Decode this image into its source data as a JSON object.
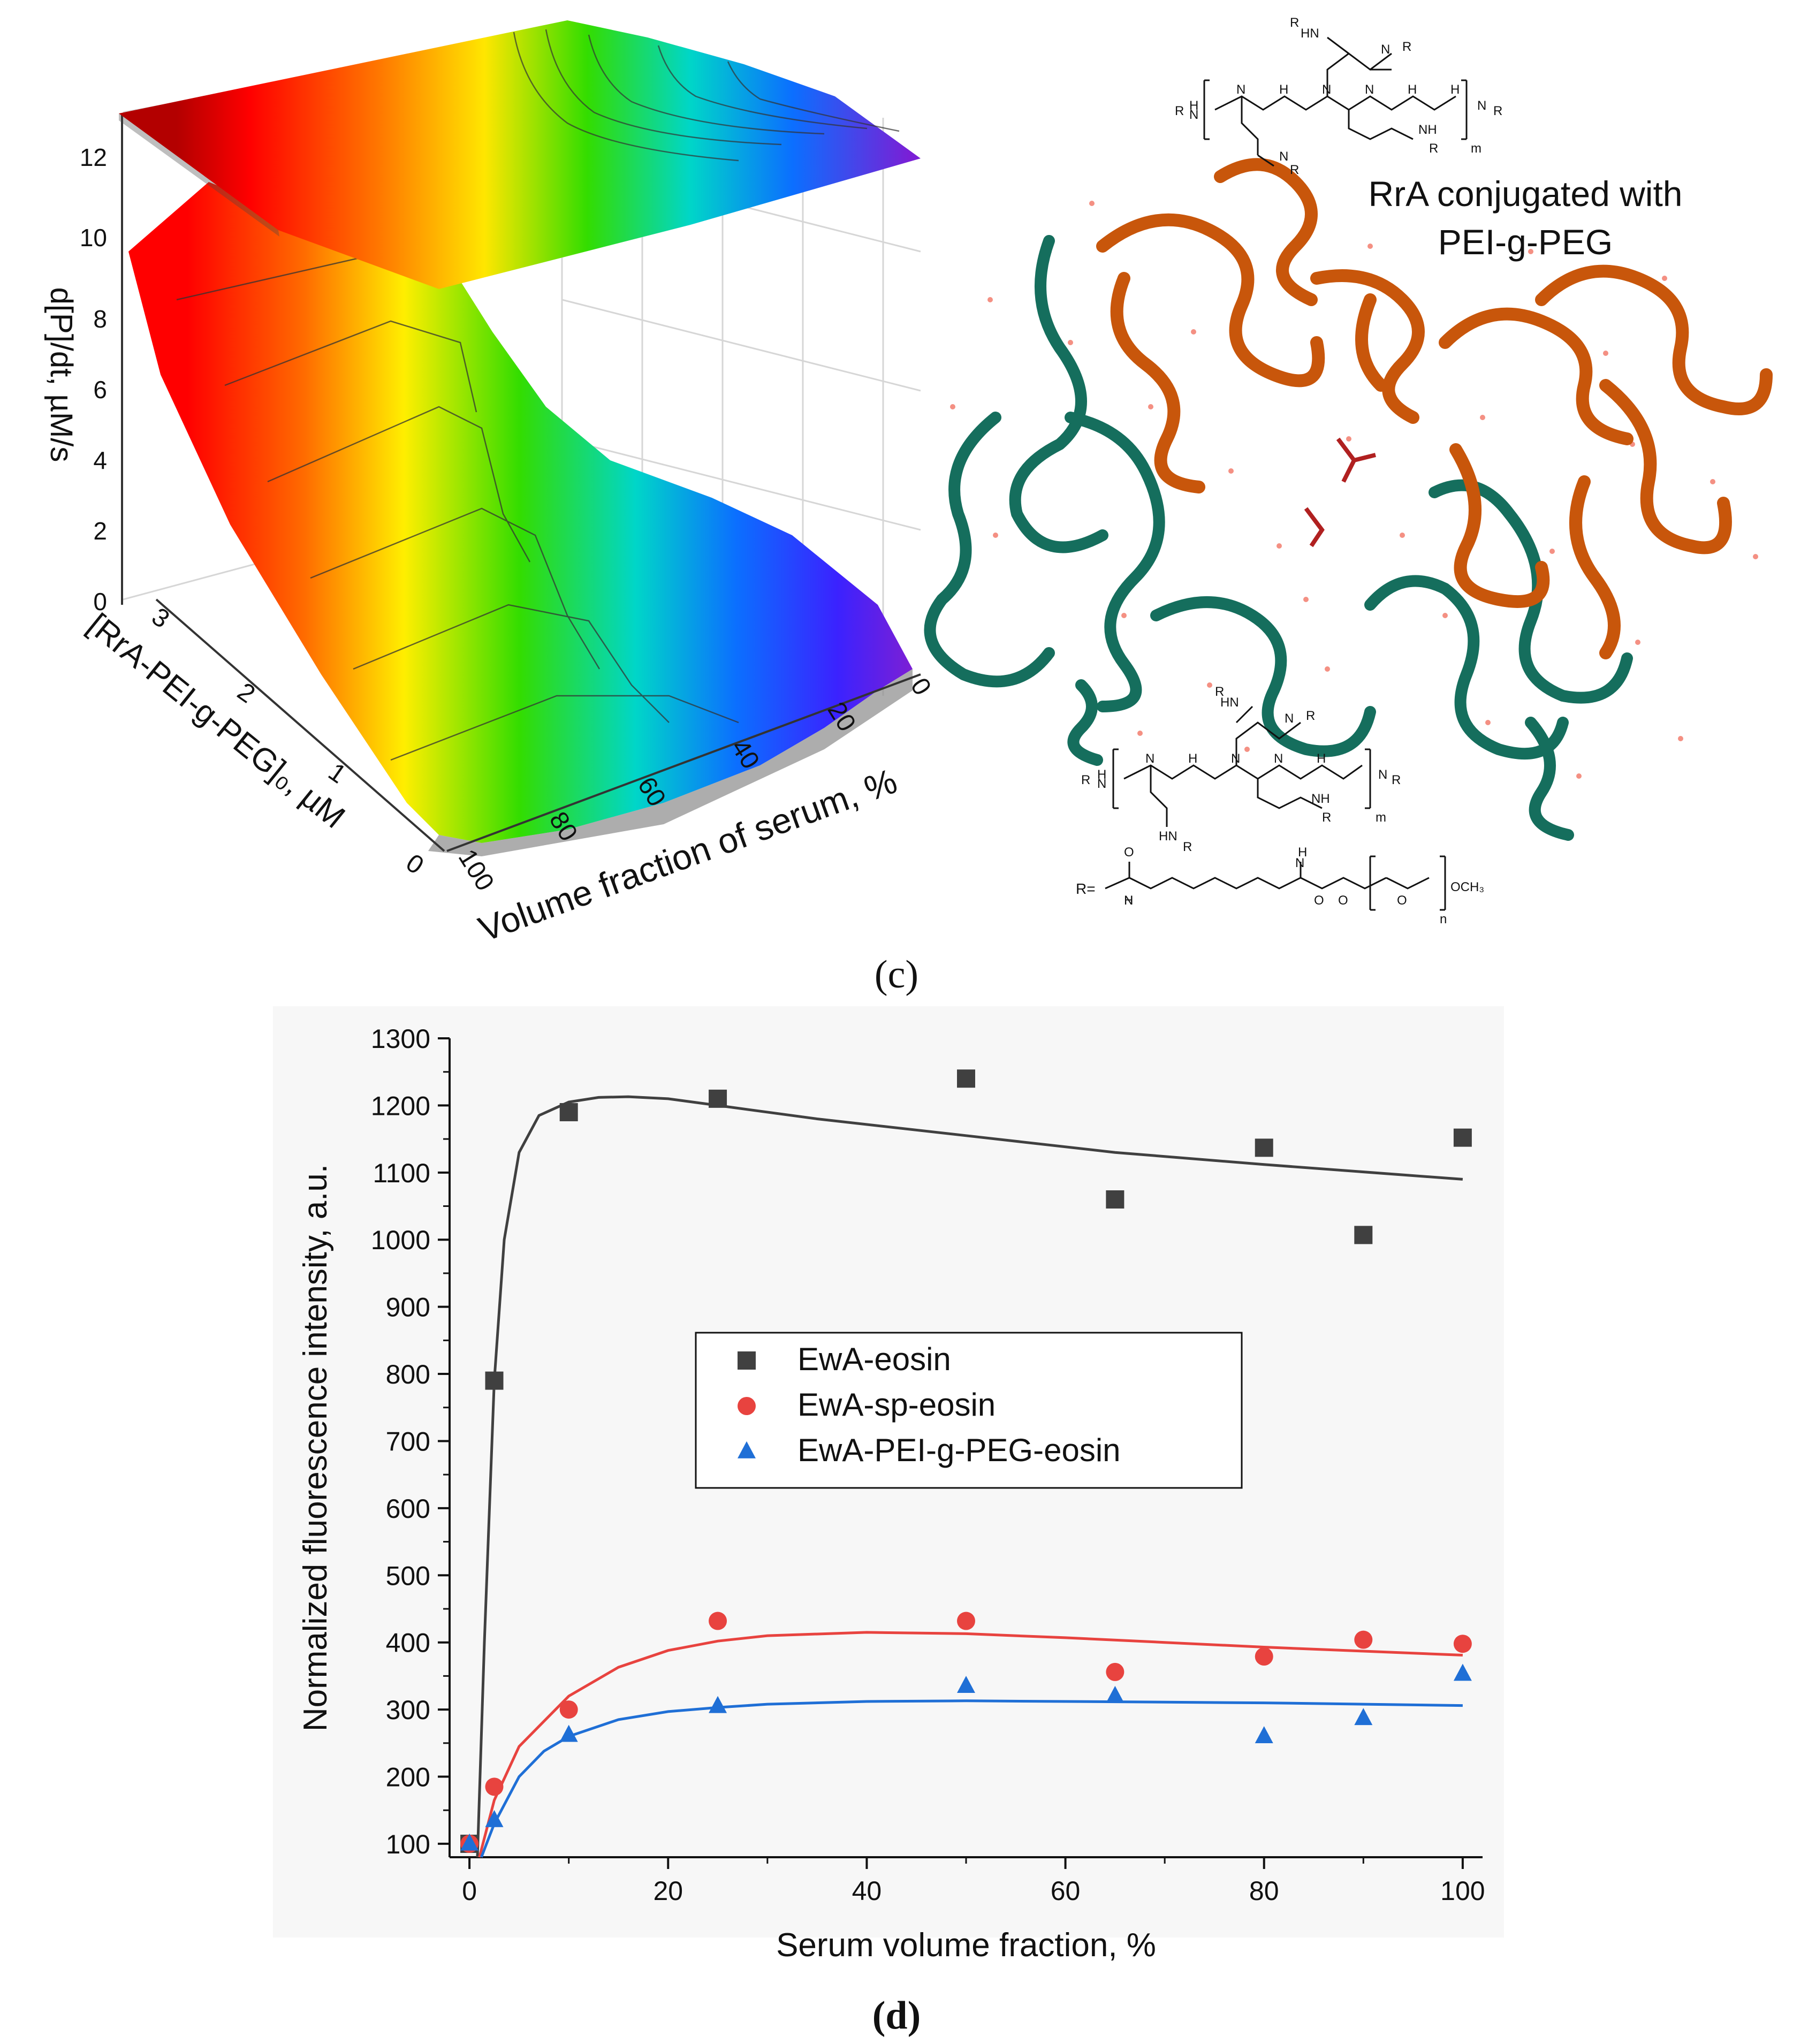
{
  "panel_c": {
    "label": "(c)",
    "surface_title": "RrA conjugated with",
    "surface_title2": "PEI-g-PEG",
    "z_axis_label": "d[P]/dt, µM/s",
    "z_ticks": [
      "0",
      "2",
      "4",
      "6",
      "8",
      "10",
      "12"
    ],
    "conc_axis_label": "[RrA-PEI-g-PEG]₀, µM",
    "conc_ticks": [
      "0",
      "1",
      "2",
      "3"
    ],
    "serum_axis_label": "Volume fraction of serum, %",
    "serum_ticks": [
      "0",
      "20",
      "40",
      "60",
      "80",
      "100"
    ],
    "structure_labels": {
      "r_group": "R=",
      "och3": "OCH₃",
      "m": "m",
      "n": "n"
    }
  },
  "panel_d": {
    "label": "(d)"
  },
  "chart_data": {
    "type": "scatter",
    "xlabel": "Serum volume fraction, %",
    "ylabel": "Normalized fluorescence intensity, a.u.",
    "xlim": [
      -2,
      102
    ],
    "ylim": [
      80,
      1300
    ],
    "x_ticks": [
      0,
      20,
      40,
      60,
      80,
      100
    ],
    "y_ticks": [
      100,
      200,
      300,
      400,
      500,
      600,
      700,
      800,
      900,
      1000,
      1100,
      1200,
      1300
    ],
    "legend_position": "center",
    "series": [
      {
        "name": "EwA-eosin",
        "color": "#404040",
        "marker": "square",
        "x": [
          0,
          2.5,
          10,
          25,
          50,
          65,
          80,
          90,
          100
        ],
        "y": [
          100,
          790,
          1190,
          1210,
          1240,
          1060,
          1137,
          1007,
          1152
        ],
        "fit": {
          "x": [
            0.8,
            1.5,
            2.5,
            3.5,
            5,
            7,
            10,
            13,
            16,
            20,
            25,
            35,
            50,
            65,
            80,
            100
          ],
          "y": [
            80,
            400,
            790,
            1000,
            1130,
            1185,
            1205,
            1212,
            1213,
            1210,
            1200,
            1180,
            1155,
            1130,
            1112,
            1090
          ]
        }
      },
      {
        "name": "EwA-sp-eosin",
        "color": "#e8433f",
        "marker": "circle",
        "x": [
          0,
          2.5,
          10,
          25,
          50,
          65,
          80,
          90,
          100
        ],
        "y": [
          100,
          185,
          300,
          432,
          432,
          356,
          379,
          404,
          398
        ],
        "fit": {
          "x": [
            1,
            2.5,
            5,
            10,
            15,
            20,
            25,
            30,
            40,
            50,
            60,
            70,
            80,
            90,
            100
          ],
          "y": [
            80,
            165,
            245,
            320,
            363,
            388,
            402,
            410,
            415,
            413,
            407,
            400,
            393,
            387,
            381
          ]
        }
      },
      {
        "name": "EwA-PEI-g-PEG-eosin",
        "color": "#1f6fd6",
        "marker": "triangle",
        "x": [
          0,
          2.5,
          10,
          25,
          50,
          65,
          80,
          90,
          100
        ],
        "y": [
          100,
          135,
          262,
          305,
          335,
          320,
          260,
          287,
          353
        ],
        "fit": {
          "x": [
            1.2,
            2.5,
            5,
            7.5,
            10,
            15,
            20,
            25,
            30,
            40,
            50,
            60,
            70,
            80,
            90,
            100
          ],
          "y": [
            80,
            130,
            200,
            238,
            260,
            285,
            297,
            303,
            308,
            312,
            313,
            312,
            311,
            310,
            308,
            306
          ]
        }
      }
    ]
  }
}
